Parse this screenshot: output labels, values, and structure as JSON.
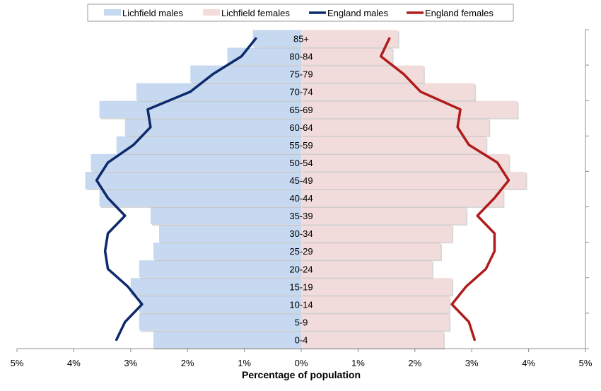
{
  "chart_data": {
    "type": "bar",
    "orientation": "horizontal",
    "subtype": "population-pyramid",
    "title": "",
    "xlabel": "Percentage of population",
    "ylabel": "",
    "xlim": [
      -5,
      5
    ],
    "x_ticks": [
      "5%",
      "4%",
      "3%",
      "2%",
      "1%",
      "0%",
      "1%",
      "2%",
      "3%",
      "4%",
      "5%"
    ],
    "legend_position": "top",
    "grid": false,
    "categories": [
      "0-4",
      "5-9",
      "10-14",
      "15-19",
      "20-24",
      "25-29",
      "30-34",
      "35-39",
      "40-44",
      "45-49",
      "50-54",
      "55-59",
      "60-64",
      "65-69",
      "70-74",
      "75-79",
      "80-84",
      "85+"
    ],
    "series": [
      {
        "name": "Lichfield males",
        "kind": "bar",
        "side": "left",
        "color": "#c6d9f1",
        "values": [
          2.6,
          2.85,
          2.85,
          3.0,
          2.85,
          2.6,
          2.5,
          2.65,
          3.55,
          3.8,
          3.7,
          3.25,
          3.1,
          3.55,
          2.9,
          1.95,
          1.3,
          0.85
        ]
      },
      {
        "name": "Lichfield females",
        "kind": "bar",
        "side": "right",
        "color": "#f2dcdb",
        "values": [
          2.5,
          2.6,
          2.6,
          2.65,
          2.3,
          2.45,
          2.65,
          2.9,
          3.55,
          3.95,
          3.65,
          3.25,
          3.3,
          3.8,
          3.05,
          2.15,
          1.6,
          1.7
        ]
      },
      {
        "name": "England males",
        "kind": "line",
        "side": "left",
        "color": "#0d2a6b",
        "values": [
          3.25,
          3.1,
          2.8,
          3.05,
          3.4,
          3.45,
          3.4,
          3.1,
          3.4,
          3.6,
          3.4,
          2.95,
          2.65,
          2.7,
          1.95,
          1.55,
          1.05,
          0.8
        ]
      },
      {
        "name": "England females",
        "kind": "line",
        "side": "right",
        "color": "#b01c1c",
        "values": [
          3.05,
          2.95,
          2.65,
          2.9,
          3.25,
          3.4,
          3.4,
          3.1,
          3.4,
          3.65,
          3.45,
          2.95,
          2.75,
          2.8,
          2.1,
          1.8,
          1.4,
          1.55
        ]
      }
    ]
  }
}
